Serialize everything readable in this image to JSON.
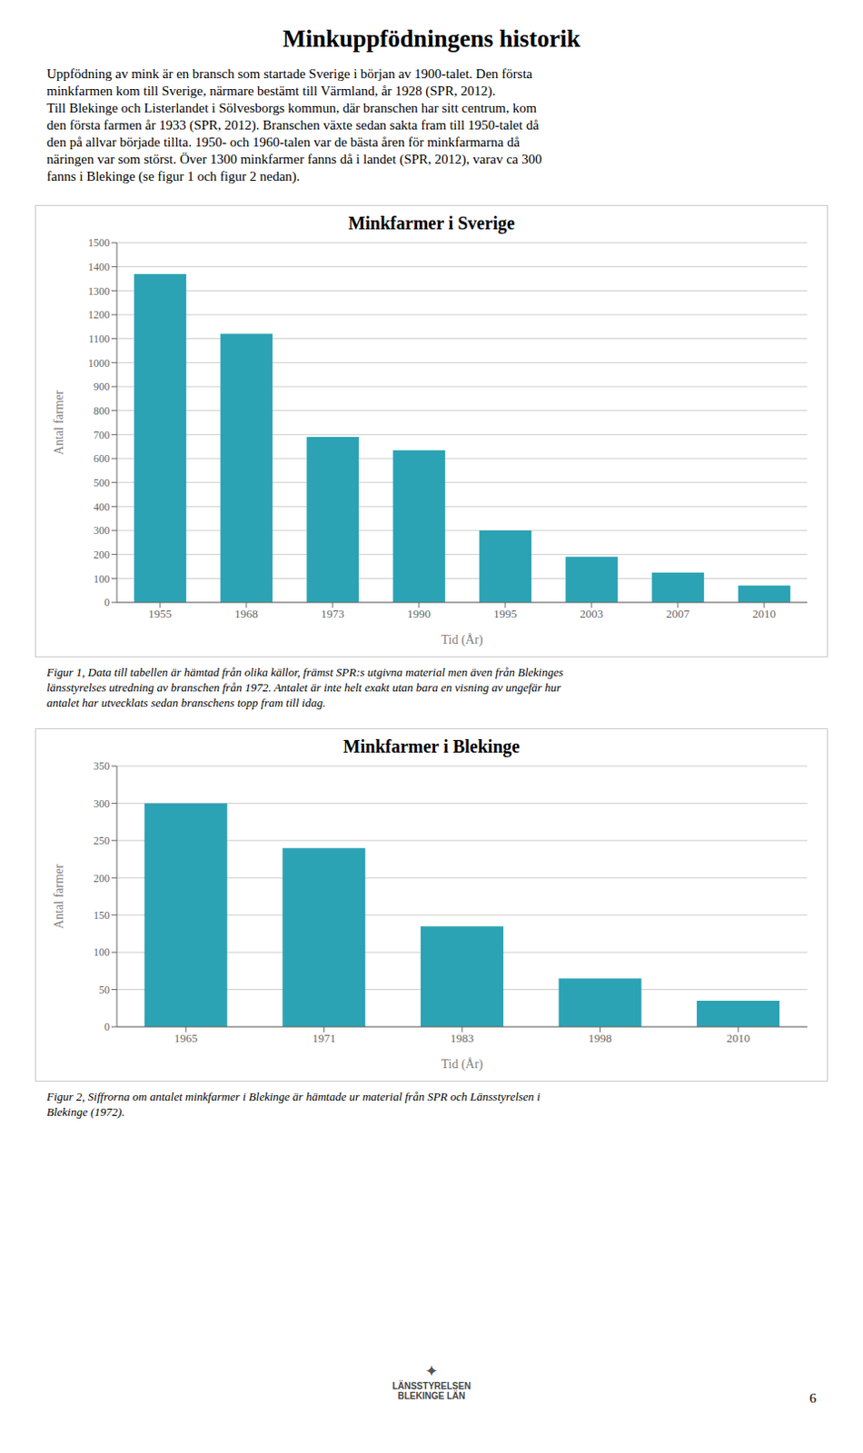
{
  "page_title": "Minkuppfödningens historik",
  "page_text_lines": [
    "Uppfödning av mink är en bransch som startade Sverige i början av 1900-talet. Den första",
    "minkfarmen kom till Sverige, närmare bestämt till Värmland, år 1928 (SPR, 2012).",
    "Till Blekinge och Listerlandet i Sölvesborgs kommun, där branschen har sitt centrum, kom",
    "den första farmen år 1933 (SPR, 2012). Branschen växte sedan sakta fram till 1950-talet då",
    "den på allvar började tillta. 1950- och 1960-talen var de bästa åren för minkfarmarna då",
    "näringen var som störst. Över 1300 minkfarmer fanns då i landet (SPR, 2012), varav ca 300",
    "fanns i Blekinge (se figur 1 och figur 2 nedan)."
  ],
  "chart_data": [
    {
      "type": "bar",
      "title": "Minkfarmer i Sverige",
      "categories": [
        "1955",
        "1968",
        "1973",
        "1990",
        "1995",
        "2003",
        "2007",
        "2010"
      ],
      "values": [
        1370,
        1120,
        690,
        635,
        300,
        190,
        125,
        70
      ],
      "color": "#2ba3b4",
      "xlabel": "Tid (År)",
      "ylabel": "Antal farmer",
      "ylim": [
        0,
        1500
      ],
      "yticks": [
        0,
        100,
        200,
        300,
        400,
        500,
        600,
        700,
        800,
        900,
        1000,
        1100,
        1200,
        1300,
        1400,
        1500
      ],
      "grid": true,
      "caption_lines": [
        "Figur 1, Data till tabellen är hämtad från olika källor, främst SPR:s utgivna material men även från Blekinges",
        "länsstyrelses utredning av branschen från 1972. Antalet är inte helt exakt utan bara en visning av ungefär hur",
        "antalet har utvecklats sedan branschens topp fram till idag."
      ]
    },
    {
      "type": "bar",
      "title": "Minkfarmer i Blekinge",
      "categories": [
        "1965",
        "1971",
        "1983",
        "1998",
        "2010"
      ],
      "values": [
        300,
        240,
        135,
        65,
        35
      ],
      "color": "#2ba3b4",
      "xlabel": "Tid (År)",
      "ylabel": "Antal farmer",
      "ylim": [
        0,
        350
      ],
      "yticks": [
        0,
        50,
        100,
        150,
        200,
        250,
        300,
        350
      ],
      "grid": true,
      "caption_lines": [
        "Figur 2, Siffrorna om antalet minkfarmer i Blekinge är hämtade ur material från SPR och Länsstyrelsen i",
        "Blekinge (1972)."
      ]
    }
  ],
  "page_number": "6",
  "logo_lines": [
    "✦",
    "LÄNSSTYRELSEN",
    "BLEKINGE LÄN"
  ]
}
